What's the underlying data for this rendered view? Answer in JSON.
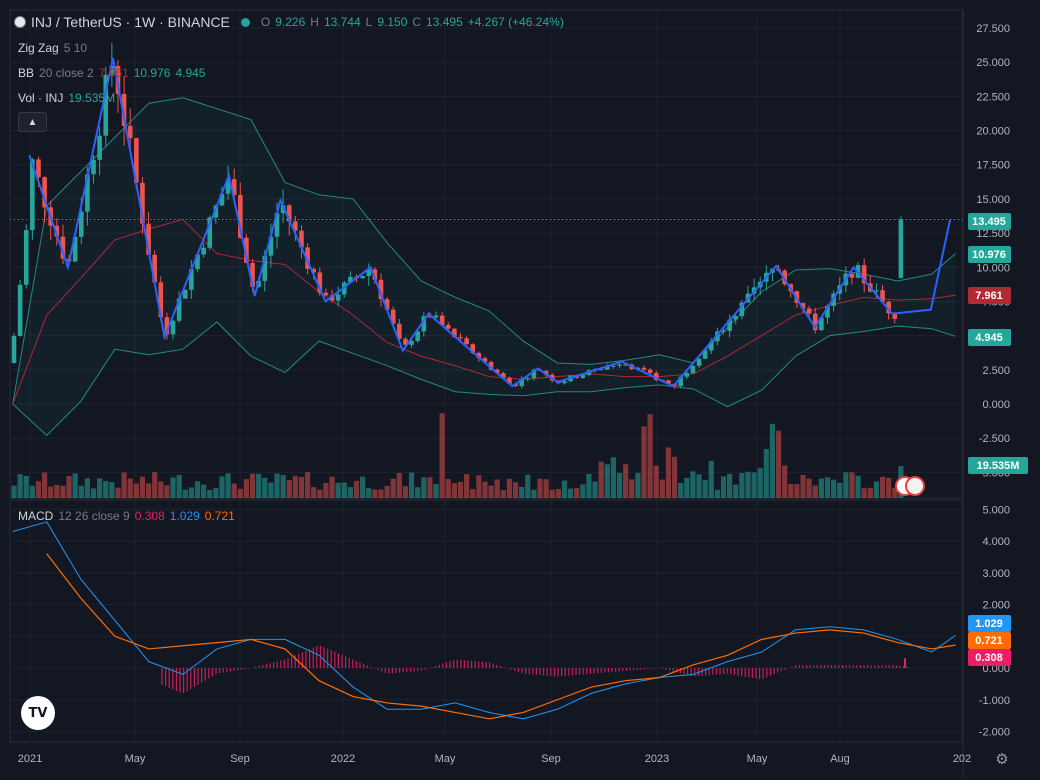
{
  "header": {
    "symbol": "INJ / TetherUS · 1W · BINANCE",
    "o_label": "O",
    "o": "9.226",
    "h_label": "H",
    "h": "13.744",
    "l_label": "L",
    "l": "9.150",
    "c_label": "C",
    "c": "13.495",
    "change": "+4.267 (+46.24%)"
  },
  "indicators": {
    "zigzag": {
      "name": "Zig Zag",
      "params": "5 10"
    },
    "bb": {
      "name": "BB",
      "params": "20 close 2",
      "basis": "7.961",
      "upper": "10.976",
      "lower": "4.945"
    },
    "vol": {
      "name": "Vol · INJ",
      "value": "19.535M"
    },
    "macd": {
      "name": "MACD",
      "params": "12 26 close 9",
      "hist": "0.308",
      "macd": "1.029",
      "signal": "0.721"
    }
  },
  "collapse_icon": "chevron-up-icon",
  "colors": {
    "background": "#131722",
    "up": "#26a69a",
    "down": "#ef5350",
    "zigzag": "#2962ff",
    "bb_basis": "#b22833",
    "bb_band": "#26a69a",
    "macd": "#2196f3",
    "signal": "#ff6d00",
    "histogram": "#e91e63"
  },
  "price_axis": {
    "ticks": [
      "27.500",
      "25.000",
      "22.500",
      "20.000",
      "17.500",
      "15.000",
      "12.500",
      "10.000",
      "7.500",
      "5.000",
      "2.500",
      "0.000",
      "-2.500",
      "-5.000"
    ],
    "labels": [
      {
        "text": "13.495",
        "bg": "#26a69a",
        "fg": "#ffffff"
      },
      {
        "text": "10.976",
        "bg": "#26a69a",
        "fg": "#ffffff"
      },
      {
        "text": "7.961",
        "bg": "#b22833",
        "fg": "#ffffff"
      },
      {
        "text": "4.945",
        "bg": "#26a69a",
        "fg": "#ffffff"
      },
      {
        "text": "19.535M",
        "bg": "#26a69a",
        "fg": "#ffffff"
      }
    ]
  },
  "macd_axis": {
    "ticks": [
      "5.000",
      "4.000",
      "3.000",
      "2.000",
      "1.000",
      "0.000",
      "-1.000",
      "-2.000"
    ],
    "labels": [
      {
        "text": "1.029",
        "bg": "#2196f3",
        "fg": "#ffffff"
      },
      {
        "text": "0.721",
        "bg": "#ff6d00",
        "fg": "#ffffff"
      },
      {
        "text": "0.308",
        "bg": "#e91e63",
        "fg": "#ffffff"
      }
    ]
  },
  "time_axis": {
    "labels": [
      "2021",
      "May",
      "Sep",
      "2022",
      "May",
      "Sep",
      "2023",
      "May",
      "Aug",
      "202"
    ]
  },
  "chart_data": {
    "type": "candlestick",
    "symbol": "INJ/USDT",
    "interval": "1W",
    "ylim": [
      -5,
      28.5
    ],
    "zigzag": [
      {
        "t": "2021-01-25",
        "v": 18.2
      },
      {
        "t": "2021-03-08",
        "v": 10.0
      },
      {
        "t": "2021-04-26",
        "v": 25.3
      },
      {
        "t": "2021-06-21",
        "v": 4.9
      },
      {
        "t": "2021-08-30",
        "v": 16.7
      },
      {
        "t": "2021-09-27",
        "v": 7.9
      },
      {
        "t": "2021-10-25",
        "v": 14.9
      },
      {
        "t": "2021-12-13",
        "v": 7.5
      },
      {
        "t": "2022-01-31",
        "v": 10.0
      },
      {
        "t": "2022-03-07",
        "v": 3.9
      },
      {
        "t": "2022-04-04",
        "v": 6.6
      },
      {
        "t": "2022-07-04",
        "v": 1.3
      },
      {
        "t": "2022-08-01",
        "v": 2.6
      },
      {
        "t": "2022-08-22",
        "v": 1.6
      },
      {
        "t": "2022-10-31",
        "v": 3.1
      },
      {
        "t": "2022-12-26",
        "v": 1.3
      },
      {
        "t": "2023-04-17",
        "v": 10.1
      },
      {
        "t": "2023-05-29",
        "v": 5.6
      },
      {
        "t": "2023-07-10",
        "v": 10.0
      },
      {
        "t": "2023-08-21",
        "v": 6.6
      },
      {
        "t": "2023-10-02",
        "v": 6.9
      },
      {
        "t": "2023-10-23",
        "v": 13.5
      }
    ],
    "bollinger": {
      "upper": [
        [
          0,
          0
        ],
        [
          1,
          14.5
        ],
        [
          3,
          19.5
        ],
        [
          4,
          22.0
        ],
        [
          5,
          22.4
        ],
        [
          7,
          20.8
        ],
        [
          8,
          16.2
        ],
        [
          9,
          15.3
        ],
        [
          10,
          15.0
        ],
        [
          11,
          11.8
        ],
        [
          12,
          9.0
        ],
        [
          13,
          7.8
        ],
        [
          14,
          6.8
        ],
        [
          15,
          4.6
        ],
        [
          16,
          3.0
        ],
        [
          17,
          2.9
        ],
        [
          18,
          3.2
        ],
        [
          19,
          3.6
        ],
        [
          20,
          3.0
        ],
        [
          22,
          8.2
        ],
        [
          23,
          9.8
        ],
        [
          24,
          9.9
        ],
        [
          25,
          9.5
        ],
        [
          26,
          9.0
        ],
        [
          27,
          9.5
        ],
        [
          27.7,
          11.0
        ]
      ],
      "basis": [
        [
          0,
          0
        ],
        [
          1,
          6.5
        ],
        [
          2,
          9.2
        ],
        [
          3,
          12.0
        ],
        [
          4,
          12.8
        ],
        [
          5,
          13.5
        ],
        [
          6,
          11.0
        ],
        [
          7,
          10.5
        ],
        [
          8,
          10.2
        ],
        [
          9,
          8.2
        ],
        [
          10,
          6.5
        ],
        [
          11,
          4.5
        ],
        [
          12,
          3.5
        ],
        [
          13,
          2.8
        ],
        [
          14,
          2.0
        ],
        [
          15,
          1.8
        ],
        [
          16,
          2.0
        ],
        [
          17,
          2.2
        ],
        [
          18,
          2.0
        ],
        [
          19,
          2.0
        ],
        [
          20,
          2.2
        ],
        [
          21,
          3.5
        ],
        [
          22,
          5.0
        ],
        [
          23,
          6.5
        ],
        [
          24,
          7.2
        ],
        [
          25,
          7.8
        ],
        [
          26,
          7.6
        ],
        [
          27,
          7.7
        ],
        [
          27.7,
          7.96
        ]
      ],
      "lower": [
        [
          0,
          0
        ],
        [
          1,
          -2.3
        ],
        [
          2,
          0.2
        ],
        [
          3,
          4.0
        ],
        [
          4,
          3.6
        ],
        [
          5,
          4.0
        ],
        [
          6,
          6.0
        ],
        [
          7,
          3.5
        ],
        [
          8,
          2.3
        ],
        [
          9,
          4.6
        ],
        [
          10,
          3.7
        ],
        [
          11,
          2.8
        ],
        [
          12,
          1.8
        ],
        [
          13,
          0.9
        ],
        [
          14,
          0.7
        ],
        [
          15,
          0.6
        ],
        [
          16,
          0.9
        ],
        [
          17,
          0.9
        ],
        [
          18,
          1.2
        ],
        [
          19,
          1.4
        ],
        [
          20,
          1.1
        ],
        [
          21,
          -0.2
        ],
        [
          22,
          1.0
        ],
        [
          23,
          3.5
        ],
        [
          24,
          5.0
        ],
        [
          25,
          5.3
        ],
        [
          26,
          5.7
        ],
        [
          27,
          5.5
        ],
        [
          27.7,
          4.95
        ]
      ]
    },
    "last": {
      "open": 9.226,
      "high": 13.744,
      "low": 9.15,
      "close": 13.495,
      "change": 4.267,
      "change_pct": 46.24
    },
    "bb_last": {
      "upper": 10.976,
      "basis": 7.961,
      "lower": 4.945
    },
    "volume_last": "19.535M",
    "macd": {
      "ylim": [
        -2.2,
        5.2
      ],
      "macd_line": [
        [
          0,
          4.3
        ],
        [
          1,
          4.6
        ],
        [
          2,
          2.8
        ],
        [
          3,
          1.5
        ],
        [
          4,
          0.2
        ],
        [
          5,
          -0.2
        ],
        [
          6,
          0.6
        ],
        [
          7,
          0.9
        ],
        [
          8,
          0.9
        ],
        [
          9,
          0.4
        ],
        [
          10,
          -0.6
        ],
        [
          11,
          -1.3
        ],
        [
          12,
          -1.3
        ],
        [
          13,
          -1.1
        ],
        [
          14,
          -1.4
        ],
        [
          15,
          -1.6
        ],
        [
          16,
          -1.3
        ],
        [
          17,
          -0.8
        ],
        [
          18,
          -0.5
        ],
        [
          19,
          -0.3
        ],
        [
          20,
          -0.2
        ],
        [
          21,
          0.2
        ],
        [
          22,
          0.5
        ],
        [
          23,
          1.2
        ],
        [
          24,
          1.3
        ],
        [
          25,
          1.2
        ],
        [
          26,
          0.9
        ],
        [
          27,
          0.5
        ],
        [
          27.7,
          1.029
        ]
      ],
      "signal_line": [
        [
          1,
          3.6
        ],
        [
          2,
          2.2
        ],
        [
          3,
          1.0
        ],
        [
          4,
          0.6
        ],
        [
          5,
          0.7
        ],
        [
          6,
          0.8
        ],
        [
          7,
          0.9
        ],
        [
          8,
          0.6
        ],
        [
          9,
          -0.4
        ],
        [
          10,
          -0.9
        ],
        [
          11,
          -1.1
        ],
        [
          12,
          -1.2
        ],
        [
          13,
          -1.4
        ],
        [
          14,
          -1.6
        ],
        [
          15,
          -1.4
        ],
        [
          16,
          -1.0
        ],
        [
          17,
          -0.6
        ],
        [
          18,
          -0.4
        ],
        [
          19,
          -0.3
        ],
        [
          20,
          0.1
        ],
        [
          21,
          0.4
        ],
        [
          22,
          0.9
        ],
        [
          23,
          1.1
        ],
        [
          24,
          1.2
        ],
        [
          25,
          1.1
        ],
        [
          26,
          0.8
        ],
        [
          27,
          0.6
        ],
        [
          27.7,
          0.721
        ]
      ],
      "histogram_last": 0.308
    }
  }
}
